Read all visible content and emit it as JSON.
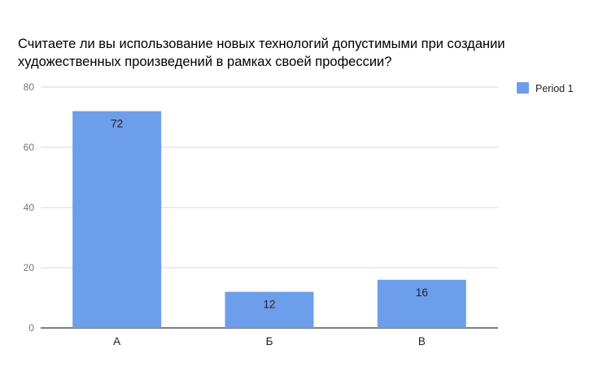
{
  "chart_data": {
    "type": "bar",
    "title_lines": [
      "Считаете ли вы использование новых технологий допустимыми при создании",
      "художественных произведений в рамках своей профессии?"
    ],
    "categories": [
      "А",
      "Б",
      "В"
    ],
    "series": [
      {
        "name": "Period 1",
        "values": [
          72,
          12,
          16
        ],
        "color": "#6d9eeb"
      }
    ],
    "ylim": [
      0,
      80
    ],
    "yticks": [
      0,
      20,
      40,
      60,
      80
    ],
    "grid": true,
    "legend": "top-right",
    "data_labels": [
      "72",
      "12",
      "16"
    ]
  }
}
